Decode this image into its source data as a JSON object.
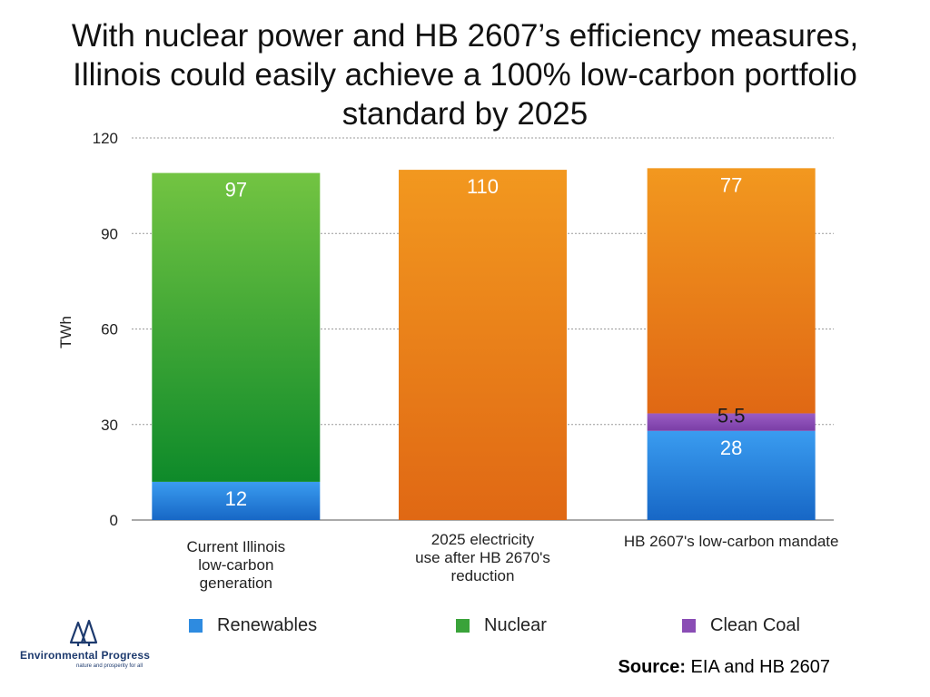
{
  "title": {
    "line1": "With nuclear power and HB 2607’s efficiency measures,",
    "line2": "Illinois could easily achieve a 100% low-carbon portfolio",
    "line3": "standard by 2025"
  },
  "chart_data": {
    "type": "bar",
    "stacked": true,
    "title": "With nuclear power and HB 2607’s efficiency measures, Illinois could easily achieve a 100% low-carbon portfolio standard by 2025",
    "ylabel": "TWh",
    "xlabel": "",
    "ylim": [
      0,
      120
    ],
    "yticks": [
      0,
      30,
      60,
      90,
      120
    ],
    "grid": true,
    "categories": [
      [
        "Current Illinois",
        "low-carbon",
        "generation"
      ],
      [
        "2025 electricity",
        "use after HB 2670's",
        "reduction"
      ],
      [
        "HB 2607's low-carbon mandate"
      ]
    ],
    "segments": [
      [
        {
          "series": "Renewables",
          "value": 12,
          "label": "12",
          "color": "#2e8be0"
        },
        {
          "series": "Nuclear",
          "value": 97,
          "label": "97",
          "color": "#3aa33a"
        }
      ],
      [
        {
          "series": "",
          "value": 110,
          "label": "110",
          "color": "#ea7f1a"
        }
      ],
      [
        {
          "series": "Renewables",
          "value": 28,
          "label": "28",
          "color": "#2e8be0"
        },
        {
          "series": "Clean Coal",
          "value": 5.5,
          "label": "5.5",
          "color": "#8a4db5"
        },
        {
          "series": "",
          "value": 77,
          "label": "77",
          "color": "#ea7f1a"
        }
      ]
    ],
    "legend": {
      "position": "bottom",
      "items": [
        {
          "name": "Renewables",
          "color": "#2e8be0"
        },
        {
          "name": "Nuclear",
          "color": "#3aa33a"
        },
        {
          "name": "Clean Coal",
          "color": "#8a4db5"
        }
      ]
    }
  },
  "logo": {
    "name": "Environmental Progress",
    "tagline": "nature and prosperity for all"
  },
  "source": {
    "label": "Source:",
    "text": " EIA and HB 2607"
  }
}
